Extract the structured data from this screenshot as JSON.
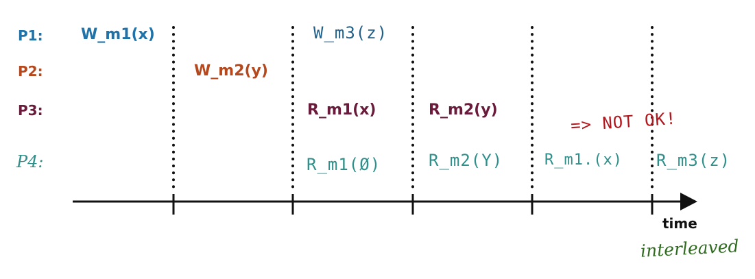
{
  "colors": {
    "p1": "#1f73a8",
    "p2": "#b5481c",
    "p3": "#6a1a3a",
    "p4": "#2f8f8a",
    "not_ok": "#b3161c",
    "interleaved": "#2f6b1f",
    "axis": "#111111"
  },
  "processes": {
    "p1": "P1:",
    "p2": "P2:",
    "p3": "P3:",
    "p4": "P4:"
  },
  "events": {
    "p1_w_m1": "W_m1(x)",
    "p1_w_m3": "W_m3(z)",
    "p2_w_m2": "W_m2(y)",
    "p3_r_m1": "R_m1(x)",
    "p3_r_m2": "R_m2(y)",
    "p4_r_m1_empty": "R_m1(Ø)",
    "p4_r_m2": "R_m2(Y)",
    "p4_r_m1_x": "R_m1.(x)",
    "p4_r_m3": "R_m3(z)"
  },
  "annotations": {
    "not_ok": "=> NOT OK!",
    "time": "time",
    "interleaved": "interleaved"
  }
}
